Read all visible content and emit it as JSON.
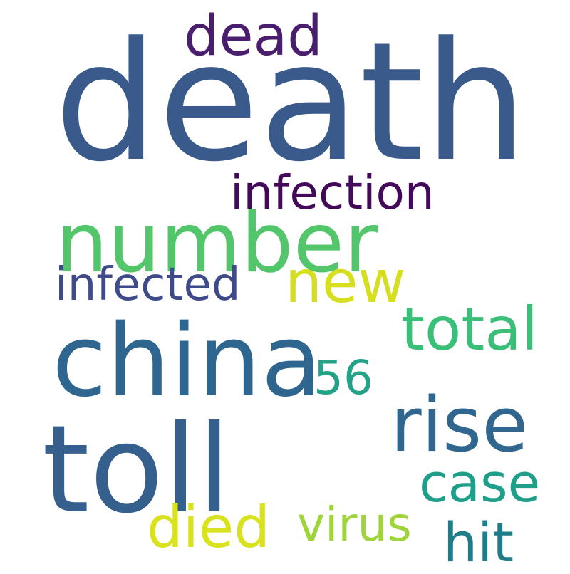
{
  "word_cloud": {
    "words": [
      {
        "text": "death",
        "color": "#3b5a8c"
      },
      {
        "text": "dead",
        "color": "#4a1d6e"
      },
      {
        "text": "infection",
        "color": "#440a5a"
      },
      {
        "text": "number",
        "color": "#53c56b"
      },
      {
        "text": "new",
        "color": "#d6df1f"
      },
      {
        "text": "infected",
        "color": "#3f4a8a"
      },
      {
        "text": "total",
        "color": "#3bbf78"
      },
      {
        "text": "china",
        "color": "#2f668f"
      },
      {
        "text": "56",
        "color": "#22a287"
      },
      {
        "text": "rise",
        "color": "#31678f"
      },
      {
        "text": "toll",
        "color": "#355f8d"
      },
      {
        "text": "case",
        "color": "#1f9f8a"
      },
      {
        "text": "died",
        "color": "#d8e21d"
      },
      {
        "text": "virus",
        "color": "#9fd53b"
      },
      {
        "text": "hit",
        "color": "#1f7d8a"
      }
    ]
  }
}
